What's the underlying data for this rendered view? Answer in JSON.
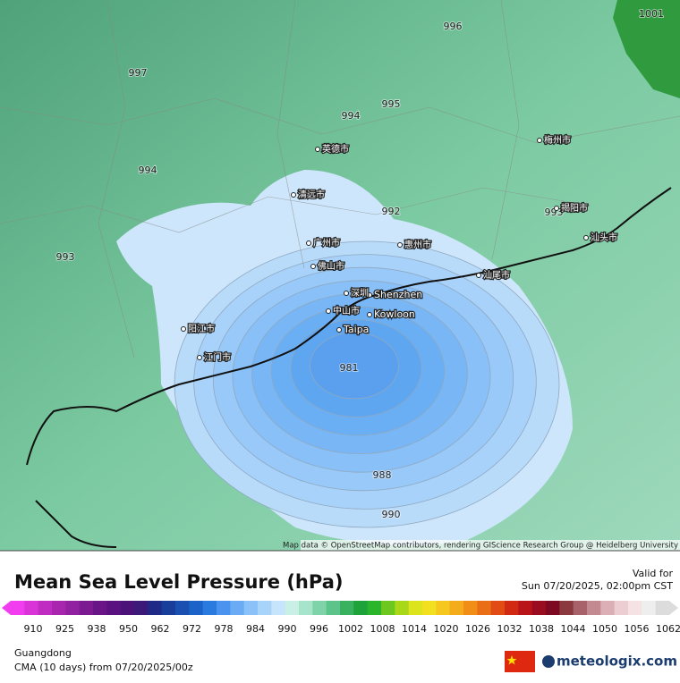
{
  "map": {
    "isobar_labels": [
      "1001",
      "996",
      "997",
      "994",
      "995",
      "994",
      "992",
      "993",
      "993",
      "981",
      "988",
      "990"
    ],
    "place_labels": [
      "Shenzhen",
      "Kowloon",
      "Taipa",
      "广州市",
      "深圳",
      "惠州市",
      "汕尾市",
      "中山市",
      "江门市",
      "阳江市",
      "清远市",
      "佛山市",
      "英德市",
      "梅州市",
      "揭阳市",
      "汕头市"
    ],
    "attribution": "Map data © OpenStreetMap contributors, rendering GIScience Research Group @ Heidelberg University"
  },
  "legend": {
    "title": "Mean Sea Level Pressure (hPa)",
    "valid_label": "Valid for",
    "valid_time": "Sun 07/20/2025, 02:00pm CST",
    "ticks": [
      910,
      925,
      938,
      950,
      962,
      972,
      978,
      984,
      990,
      996,
      1002,
      1008,
      1014,
      1020,
      1026,
      1032,
      1038,
      1044,
      1050,
      1056,
      1062
    ],
    "colors": [
      "#f23cf0",
      "#d934d8",
      "#c02cc2",
      "#a826ad",
      "#9121a0",
      "#7c1a92",
      "#6a1587",
      "#5a1280",
      "#4b137a",
      "#3b1a7a",
      "#1f2a86",
      "#183d9a",
      "#1a50b0",
      "#1c63c8",
      "#2a7ae0",
      "#4a93ee",
      "#6aabf4",
      "#8ac1f8",
      "#a9d4fa",
      "#c6e4fb",
      "#c8f0e4",
      "#a6e4cc",
      "#7fd3a8",
      "#5cc38a",
      "#38b25f",
      "#1ea23a",
      "#2ab52a",
      "#6cc81e",
      "#a8d818",
      "#dbe41c",
      "#f2e020",
      "#f6c81e",
      "#f4ac1a",
      "#f08e18",
      "#ea6e16",
      "#e04c14",
      "#d02a12",
      "#b8141a",
      "#9a0c20",
      "#7c0a22",
      "#8a3a3e",
      "#a8626a",
      "#c48a92",
      "#dcaeb6",
      "#eccdd2",
      "#f4e2e4",
      "#eeeeee",
      "#dcdcdc"
    ]
  },
  "footer": {
    "region": "Guangdong",
    "model": "CMA (10 days) from 07/20/2025/00z",
    "brand": "meteologix.com"
  }
}
